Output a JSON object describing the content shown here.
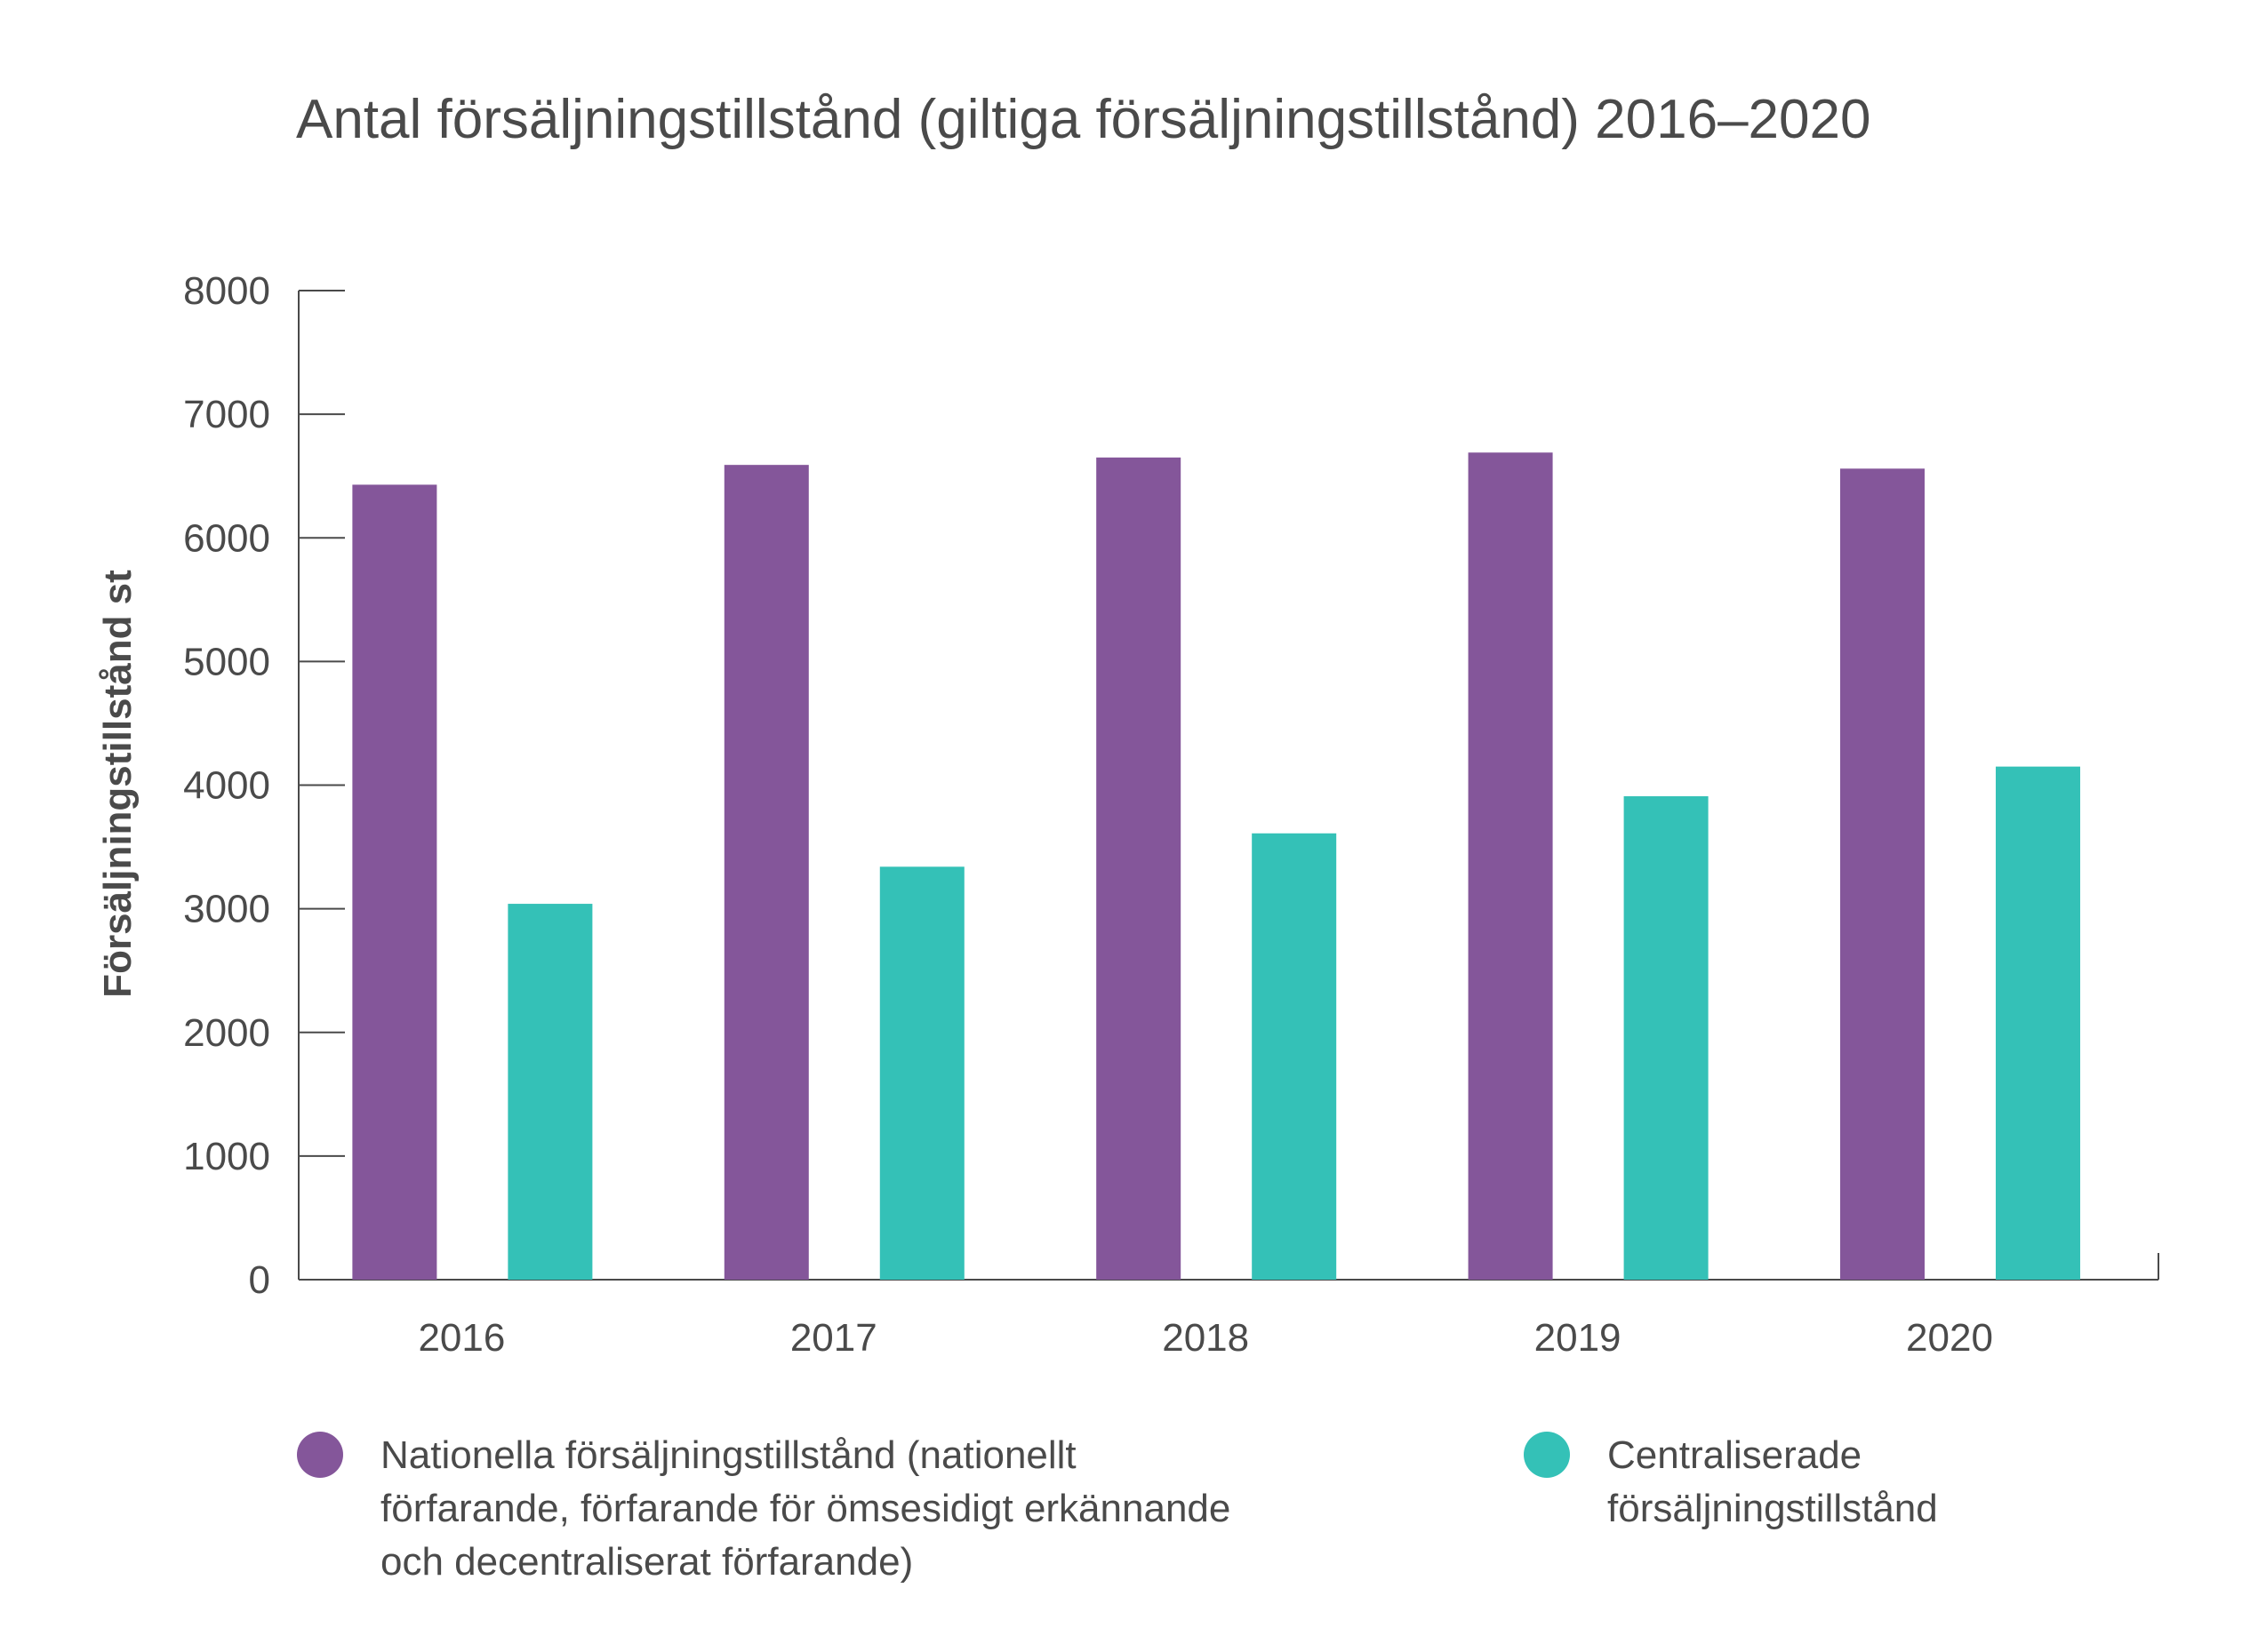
{
  "chart_data": {
    "type": "bar",
    "title": "Antal försäljningstillstånd (giltiga försäljningstillstånd) 2016–2020",
    "xlabel": "",
    "ylabel": "Försäljningstillstånd st",
    "categories": [
      "2016",
      "2017",
      "2018",
      "2019",
      "2020"
    ],
    "series": [
      {
        "name": "Nationella försäljningstillstånd (nationellt förfarande, förfarande för ömsesidigt erkännande och decentraliserat förfarande)",
        "legend_lines": [
          "Nationella försäljningstillstånd (nationellt",
          "förfarande, förfarande för ömsesidigt erkännande",
          "och decentraliserat förfarande)"
        ],
        "color": "#84569a",
        "values": [
          6430,
          6590,
          6650,
          6690,
          6560
        ]
      },
      {
        "name": "Centraliserade försäljningstillstånd",
        "legend_lines": [
          "Centraliserade",
          "försäljningstillstånd"
        ],
        "color": "#34c1b7",
        "values": [
          3040,
          3340,
          3610,
          3910,
          4150
        ]
      }
    ],
    "ylim": [
      0,
      8000
    ],
    "yticks": [
      "0",
      "1000",
      "2000",
      "3000",
      "4000",
      "5000",
      "6000",
      "7000",
      "8000"
    ],
    "grid": false,
    "legend_position": "bottom"
  }
}
